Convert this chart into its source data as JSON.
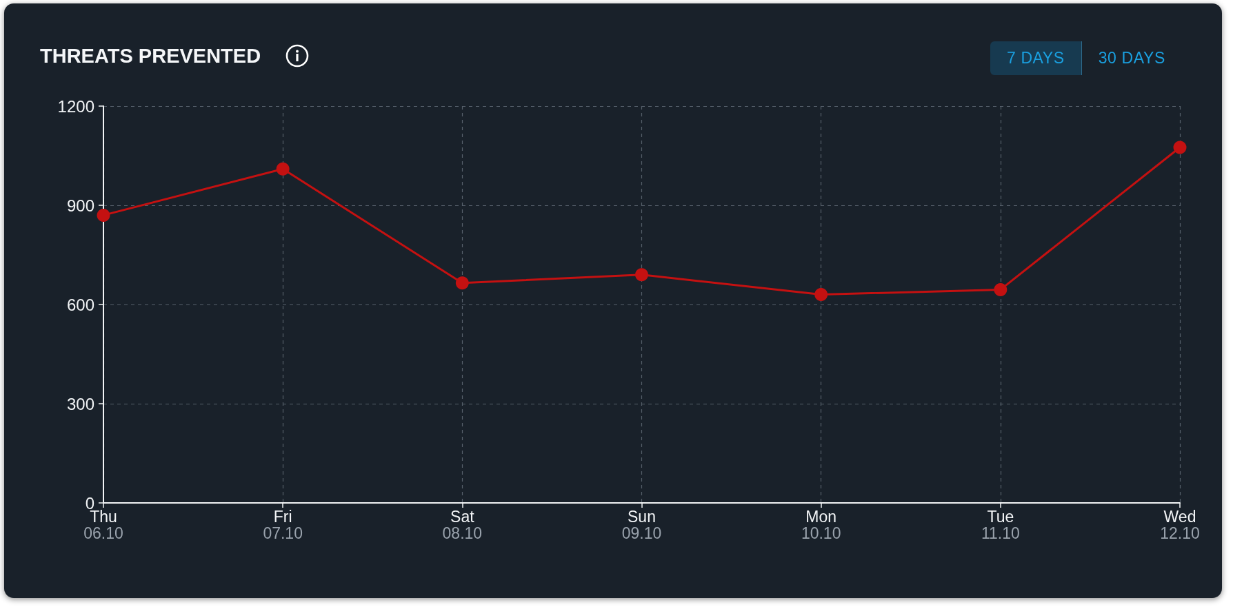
{
  "chart_data": {
    "type": "line",
    "title": "THREATS PREVENTED",
    "categories": [
      "Thu\n06.10",
      "Fri\n07.10",
      "Sat\n08.10",
      "Sun\n09.10",
      "Mon\n10.10",
      "Tue\n11.10",
      "Wed\n12.10"
    ],
    "series": [
      {
        "color": "#c41111",
        "values": [
          870,
          1010,
          665,
          690,
          630,
          645,
          1075
        ]
      }
    ],
    "ylim": [
      0,
      1200
    ],
    "yticks": [
      0,
      300,
      600,
      900,
      1200
    ],
    "grid": true,
    "marker": "circle",
    "line_style": "solid",
    "annotations": [
      "7 DAYS",
      "30 DAYS"
    ]
  }
}
